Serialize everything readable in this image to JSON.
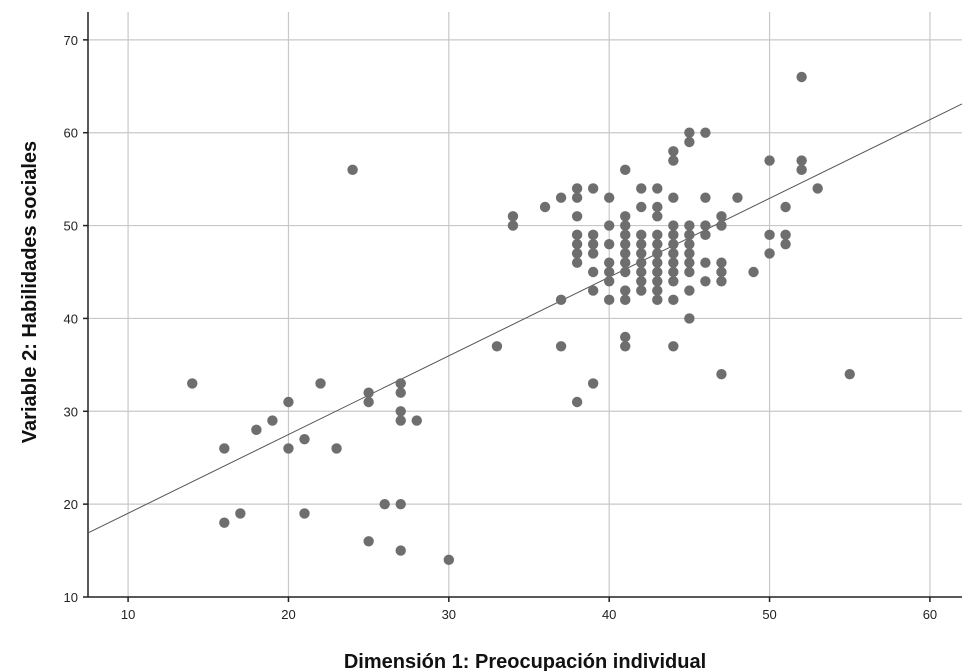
{
  "chart_data": {
    "type": "scatter",
    "title": "",
    "xlabel": "Dimensión 1: Preocupación individual",
    "ylabel": "Variable 2: Habilidades sociales",
    "xlim": [
      7.5,
      62
    ],
    "ylim": [
      10,
      73
    ],
    "x_ticks": [
      10,
      20,
      30,
      40,
      50,
      60
    ],
    "y_ticks": [
      10,
      20,
      30,
      40,
      50,
      60,
      70
    ],
    "grid": true,
    "legend": "none",
    "point_color": "#6e6e6e",
    "fit_line": {
      "x": [
        7.5,
        62
      ],
      "y": [
        16.9,
        63.1
      ],
      "color": "#555555"
    },
    "points": [
      [
        14,
        33
      ],
      [
        16,
        26
      ],
      [
        16,
        18
      ],
      [
        17,
        19
      ],
      [
        18,
        28
      ],
      [
        19,
        29
      ],
      [
        20,
        31
      ],
      [
        20,
        26
      ],
      [
        21,
        27
      ],
      [
        21,
        19
      ],
      [
        22,
        33
      ],
      [
        23,
        26
      ],
      [
        24,
        56
      ],
      [
        25,
        32
      ],
      [
        25,
        31
      ],
      [
        25,
        16
      ],
      [
        26,
        20
      ],
      [
        27,
        33
      ],
      [
        27,
        32
      ],
      [
        27,
        30
      ],
      [
        27,
        29
      ],
      [
        27,
        20
      ],
      [
        27,
        15
      ],
      [
        28,
        29
      ],
      [
        30,
        14
      ],
      [
        33,
        37
      ],
      [
        34,
        51
      ],
      [
        34,
        50
      ],
      [
        36,
        52
      ],
      [
        37,
        53
      ],
      [
        37,
        42
      ],
      [
        37,
        37
      ],
      [
        38,
        54
      ],
      [
        38,
        53
      ],
      [
        38,
        51
      ],
      [
        38,
        49
      ],
      [
        38,
        48
      ],
      [
        38,
        47
      ],
      [
        38,
        46
      ],
      [
        38,
        31
      ],
      [
        39,
        54
      ],
      [
        39,
        49
      ],
      [
        39,
        48
      ],
      [
        39,
        47
      ],
      [
        39,
        45
      ],
      [
        39,
        43
      ],
      [
        39,
        33
      ],
      [
        40,
        53
      ],
      [
        40,
        50
      ],
      [
        40,
        48
      ],
      [
        40,
        46
      ],
      [
        40,
        45
      ],
      [
        40,
        44
      ],
      [
        40,
        42
      ],
      [
        41,
        56
      ],
      [
        41,
        51
      ],
      [
        41,
        50
      ],
      [
        41,
        49
      ],
      [
        41,
        48
      ],
      [
        41,
        47
      ],
      [
        41,
        46
      ],
      [
        41,
        45
      ],
      [
        41,
        43
      ],
      [
        41,
        42
      ],
      [
        41,
        38
      ],
      [
        41,
        37
      ],
      [
        42,
        54
      ],
      [
        42,
        52
      ],
      [
        42,
        49
      ],
      [
        42,
        48
      ],
      [
        42,
        47
      ],
      [
        42,
        46
      ],
      [
        42,
        45
      ],
      [
        42,
        44
      ],
      [
        42,
        43
      ],
      [
        43,
        54
      ],
      [
        43,
        52
      ],
      [
        43,
        51
      ],
      [
        43,
        49
      ],
      [
        43,
        48
      ],
      [
        43,
        47
      ],
      [
        43,
        46
      ],
      [
        43,
        45
      ],
      [
        43,
        44
      ],
      [
        43,
        43
      ],
      [
        43,
        42
      ],
      [
        44,
        58
      ],
      [
        44,
        57
      ],
      [
        44,
        53
      ],
      [
        44,
        50
      ],
      [
        44,
        49
      ],
      [
        44,
        48
      ],
      [
        44,
        47
      ],
      [
        44,
        46
      ],
      [
        44,
        45
      ],
      [
        44,
        44
      ],
      [
        44,
        42
      ],
      [
        44,
        37
      ],
      [
        45,
        60
      ],
      [
        45,
        59
      ],
      [
        45,
        50
      ],
      [
        45,
        49
      ],
      [
        45,
        48
      ],
      [
        45,
        47
      ],
      [
        45,
        46
      ],
      [
        45,
        45
      ],
      [
        45,
        43
      ],
      [
        45,
        40
      ],
      [
        46,
        60
      ],
      [
        46,
        53
      ],
      [
        46,
        50
      ],
      [
        46,
        49
      ],
      [
        46,
        46
      ],
      [
        46,
        44
      ],
      [
        47,
        51
      ],
      [
        47,
        50
      ],
      [
        47,
        46
      ],
      [
        47,
        45
      ],
      [
        47,
        44
      ],
      [
        47,
        34
      ],
      [
        48,
        53
      ],
      [
        49,
        45
      ],
      [
        50,
        57
      ],
      [
        50,
        49
      ],
      [
        50,
        47
      ],
      [
        51,
        52
      ],
      [
        51,
        49
      ],
      [
        51,
        48
      ],
      [
        52,
        66
      ],
      [
        52,
        57
      ],
      [
        52,
        56
      ],
      [
        53,
        54
      ],
      [
        55,
        34
      ]
    ]
  }
}
